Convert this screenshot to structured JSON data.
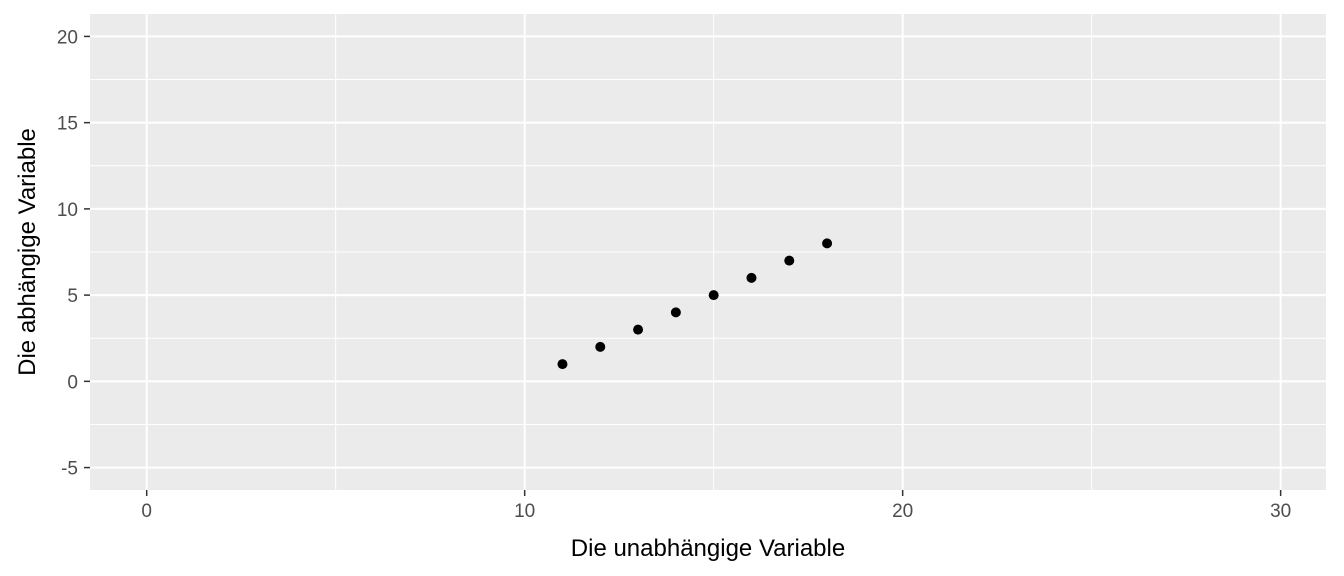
{
  "chart_data": {
    "type": "scatter",
    "xlabel": "Die unabhängige Variable",
    "ylabel": "Die abhängige Variable",
    "xlim": [
      -1.5,
      31.2
    ],
    "ylim": [
      -6.3,
      21.3
    ],
    "x_ticks": [
      0,
      10,
      20,
      30
    ],
    "x_minor_ticks": [
      5,
      15,
      25
    ],
    "y_ticks": [
      -5,
      0,
      5,
      10,
      15,
      20
    ],
    "y_minor_ticks": [
      -2.5,
      2.5,
      7.5,
      12.5,
      17.5
    ],
    "grid": true,
    "points": [
      {
        "x": 11,
        "y": 1
      },
      {
        "x": 12,
        "y": 2
      },
      {
        "x": 13,
        "y": 3
      },
      {
        "x": 14,
        "y": 4
      },
      {
        "x": 15,
        "y": 5
      },
      {
        "x": 16,
        "y": 6
      },
      {
        "x": 17,
        "y": 7
      },
      {
        "x": 18,
        "y": 8
      }
    ],
    "colors": {
      "panel": "#ebebeb",
      "grid": "#ffffff",
      "point": "#000000",
      "tick": "#333333"
    }
  }
}
